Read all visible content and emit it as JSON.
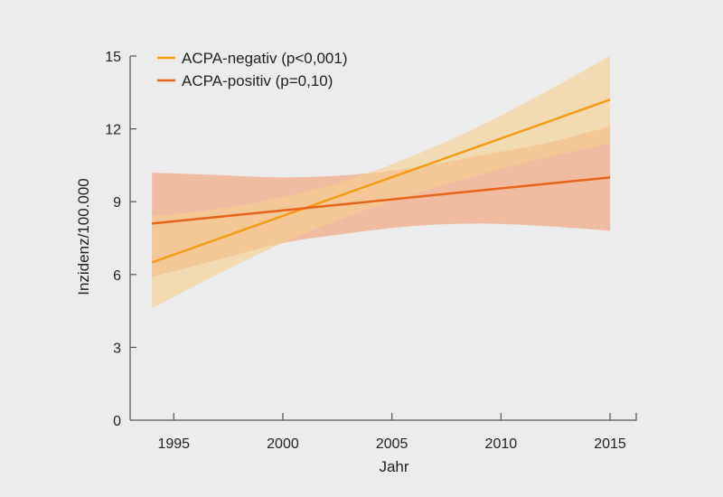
{
  "chart_data": {
    "type": "line",
    "title": "",
    "xlabel": "Jahr",
    "ylabel": "Inzidenz/100.000",
    "xlim": [
      1993,
      2016.2
    ],
    "ylim": [
      0,
      15
    ],
    "xticks": [
      1995,
      2000,
      2005,
      2010,
      2015
    ],
    "xtick_labels": [
      "1995",
      "2000",
      "2005",
      "2010",
      "2015"
    ],
    "yticks": [
      0,
      3,
      6,
      9,
      12,
      15
    ],
    "ytick_labels": [
      "0",
      "3",
      "6",
      "9",
      "12",
      "15"
    ],
    "grid": false,
    "legend_position": "top-left",
    "series": [
      {
        "name": "ACPA-negativ (p<0,001)",
        "color": "#f39c12",
        "band_color": "#f5cf8f",
        "x": [
          1994,
          2015
        ],
        "values": [
          6.5,
          13.2
        ],
        "ci_x": [
          1994,
          1997,
          2000,
          2003,
          2006,
          2009,
          2012,
          2015
        ],
        "ci_lower": [
          4.6,
          6.0,
          7.3,
          8.4,
          9.3,
          10.1,
          10.8,
          11.4
        ],
        "ci_upper": [
          8.4,
          8.7,
          9.2,
          9.9,
          10.9,
          12.1,
          13.5,
          15.0
        ]
      },
      {
        "name": "ACPA-positiv (p=0,10)",
        "color": "#e8621a",
        "band_color": "#f0a47d",
        "x": [
          1994,
          2015
        ],
        "values": [
          8.1,
          10.0
        ],
        "ci_x": [
          1994,
          1997,
          2000,
          2003,
          2006,
          2009,
          2012,
          2015
        ],
        "ci_lower": [
          5.9,
          6.6,
          7.3,
          7.7,
          8.0,
          8.1,
          8.0,
          7.8
        ],
        "ci_upper": [
          10.2,
          10.1,
          10.0,
          10.1,
          10.4,
          10.9,
          11.4,
          12.1
        ]
      }
    ]
  }
}
